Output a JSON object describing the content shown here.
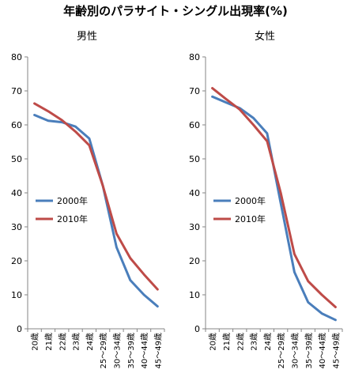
{
  "title": "年齢別のパラサイト・シングル出現率(%)",
  "colors": {
    "s2000": "#4a7ebb",
    "s2010": "#be4b48",
    "axis": "#868686"
  },
  "chart_data": [
    {
      "type": "line",
      "title": "男性",
      "categories": [
        "20歳",
        "21歳",
        "22歳",
        "23歳",
        "24歳",
        "25～29歳",
        "30～34歳",
        "35～39歳",
        "40～44歳",
        "45～49歳"
      ],
      "yticks": [
        "0",
        "10",
        "20",
        "30",
        "40",
        "50",
        "60",
        "70",
        "80"
      ],
      "ylim": [
        0,
        80
      ],
      "grid": false,
      "legend": "middle-left",
      "series": [
        {
          "name": "2000年",
          "values": [
            62.9,
            61.2,
            60.8,
            59.5,
            56.0,
            42.0,
            24.0,
            14.3,
            10.0,
            6.6
          ]
        },
        {
          "name": "2010年",
          "values": [
            66.3,
            64.0,
            61.4,
            58.0,
            54.0,
            42.0,
            28.0,
            20.8,
            16.0,
            11.6
          ]
        }
      ]
    },
    {
      "type": "line",
      "title": "女性",
      "categories": [
        "20歳",
        "21歳",
        "22歳",
        "23歳",
        "24歳",
        "25～29歳",
        "30～34歳",
        "35～39歳",
        "40～44歳",
        "45～49歳"
      ],
      "yticks": [
        "0",
        "10",
        "20",
        "30",
        "40",
        "50",
        "60",
        "70",
        "80"
      ],
      "ylim": [
        0,
        80
      ],
      "grid": false,
      "legend": "middle-left",
      "series": [
        {
          "name": "2000年",
          "values": [
            68.3,
            66.6,
            64.9,
            62.0,
            57.5,
            37.0,
            16.7,
            7.8,
            4.5,
            2.6
          ]
        },
        {
          "name": "2010年",
          "values": [
            70.8,
            67.6,
            64.5,
            60.0,
            55.2,
            40.0,
            22.0,
            14.0,
            10.0,
            6.4
          ]
        }
      ]
    }
  ]
}
